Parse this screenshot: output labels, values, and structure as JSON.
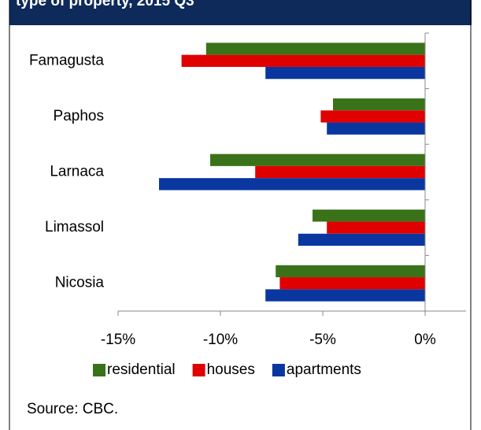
{
  "chart_data": {
    "type": "hbar",
    "title": "type of property, 2015 Q3",
    "source": "Source: CBC.",
    "categories": [
      "Famagusta",
      "Paphos",
      "Larnaca",
      "Limassol",
      "Nicosia"
    ],
    "series": [
      {
        "name": "residential",
        "color": "#3a7219",
        "values": [
          -10.7,
          -4.5,
          -10.5,
          -5.5,
          -7.3
        ]
      },
      {
        "name": "houses",
        "color": "#e00000",
        "values": [
          -11.9,
          -5.1,
          -8.3,
          -4.8,
          -7.1
        ]
      },
      {
        "name": "apartments",
        "color": "#0a36a0",
        "values": [
          -7.8,
          -4.8,
          -13.0,
          -6.2,
          -7.8
        ]
      }
    ],
    "xlim": [
      -15,
      2
    ],
    "xticks": [
      {
        "value": -15,
        "label": "-15%"
      },
      {
        "value": -10,
        "label": "-10%"
      },
      {
        "value": -5,
        "label": "-5%"
      },
      {
        "value": 0,
        "label": "0%"
      }
    ],
    "legend": "bottom"
  }
}
